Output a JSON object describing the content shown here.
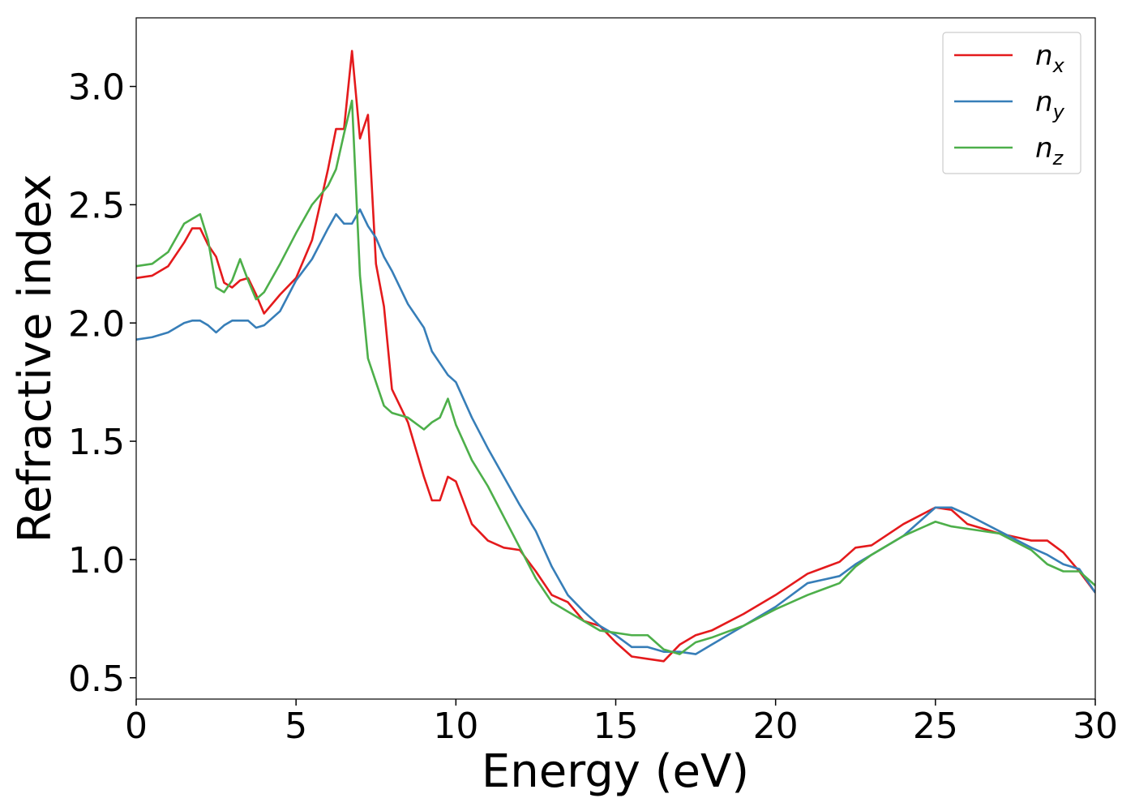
{
  "chart_data": {
    "type": "line",
    "x_label": "Energy (eV)",
    "y_label": "Refractive index",
    "xlim": [
      0,
      30
    ],
    "ylim": [
      0.41,
      3.29
    ],
    "xticks": [
      0,
      5,
      10,
      15,
      20,
      25,
      30
    ],
    "yticks": [
      {
        "value": 0.5,
        "label": "0.5"
      },
      {
        "value": 1.0,
        "label": "1.0"
      },
      {
        "value": 1.5,
        "label": "1.5"
      },
      {
        "value": 2.0,
        "label": "2.0"
      },
      {
        "value": 2.5,
        "label": "2.5"
      },
      {
        "value": 3.0,
        "label": "3.0"
      }
    ],
    "legend": "upper right",
    "grid": false,
    "x": [
      0,
      0.5,
      1,
      1.5,
      1.75,
      2,
      2.25,
      2.5,
      2.75,
      3,
      3.25,
      3.5,
      3.75,
      4,
      4.5,
      5,
      5.5,
      6,
      6.25,
      6.5,
      6.75,
      7,
      7.25,
      7.5,
      7.75,
      8,
      8.5,
      9,
      9.25,
      9.5,
      9.75,
      10,
      10.5,
      11,
      11.5,
      12,
      12.5,
      13,
      13.5,
      14,
      14.5,
      15,
      15.5,
      16,
      16.5,
      17,
      17.5,
      18,
      19,
      20,
      21,
      22,
      22.5,
      23,
      24,
      25,
      25.5,
      26,
      27,
      28,
      28.5,
      29,
      29.5,
      30
    ],
    "series": [
      {
        "name": "nx",
        "color": "#e41a1c",
        "values": [
          2.19,
          2.2,
          2.24,
          2.34,
          2.4,
          2.4,
          2.33,
          2.28,
          2.17,
          2.15,
          2.18,
          2.19,
          2.12,
          2.04,
          2.12,
          2.19,
          2.35,
          2.65,
          2.82,
          2.82,
          3.15,
          2.78,
          2.88,
          2.25,
          2.07,
          1.72,
          1.58,
          1.35,
          1.25,
          1.25,
          1.35,
          1.33,
          1.15,
          1.08,
          1.05,
          1.04,
          0.95,
          0.85,
          0.82,
          0.74,
          0.72,
          0.65,
          0.59,
          0.58,
          0.57,
          0.64,
          0.68,
          0.7,
          0.77,
          0.85,
          0.94,
          0.99,
          1.05,
          1.06,
          1.15,
          1.22,
          1.21,
          1.15,
          1.11,
          1.08,
          1.08,
          1.03,
          0.95,
          0.86
        ]
      },
      {
        "name": "ny",
        "color": "#377eb8",
        "values": [
          1.93,
          1.94,
          1.96,
          2.0,
          2.01,
          2.01,
          1.99,
          1.96,
          1.99,
          2.01,
          2.01,
          2.01,
          1.98,
          1.99,
          2.05,
          2.18,
          2.27,
          2.4,
          2.46,
          2.42,
          2.42,
          2.48,
          2.41,
          2.36,
          2.28,
          2.22,
          2.08,
          1.98,
          1.88,
          1.83,
          1.78,
          1.75,
          1.6,
          1.47,
          1.35,
          1.23,
          1.12,
          0.97,
          0.85,
          0.78,
          0.72,
          0.68,
          0.63,
          0.63,
          0.61,
          0.61,
          0.6,
          0.64,
          0.72,
          0.8,
          0.9,
          0.93,
          0.98,
          1.02,
          1.1,
          1.22,
          1.22,
          1.19,
          1.12,
          1.05,
          1.02,
          0.98,
          0.96,
          0.86
        ]
      },
      {
        "name": "nz",
        "color": "#4daf4a",
        "values": [
          2.24,
          2.25,
          2.3,
          2.42,
          2.44,
          2.46,
          2.35,
          2.15,
          2.13,
          2.18,
          2.27,
          2.18,
          2.1,
          2.13,
          2.25,
          2.38,
          2.5,
          2.58,
          2.65,
          2.8,
          2.94,
          2.2,
          1.85,
          1.75,
          1.65,
          1.62,
          1.6,
          1.55,
          1.58,
          1.6,
          1.68,
          1.57,
          1.42,
          1.31,
          1.18,
          1.05,
          0.92,
          0.82,
          0.78,
          0.74,
          0.7,
          0.69,
          0.68,
          0.68,
          0.62,
          0.6,
          0.65,
          0.67,
          0.72,
          0.79,
          0.85,
          0.9,
          0.97,
          1.02,
          1.1,
          1.16,
          1.14,
          1.13,
          1.11,
          1.04,
          0.98,
          0.95,
          0.95,
          0.89
        ]
      }
    ]
  }
}
